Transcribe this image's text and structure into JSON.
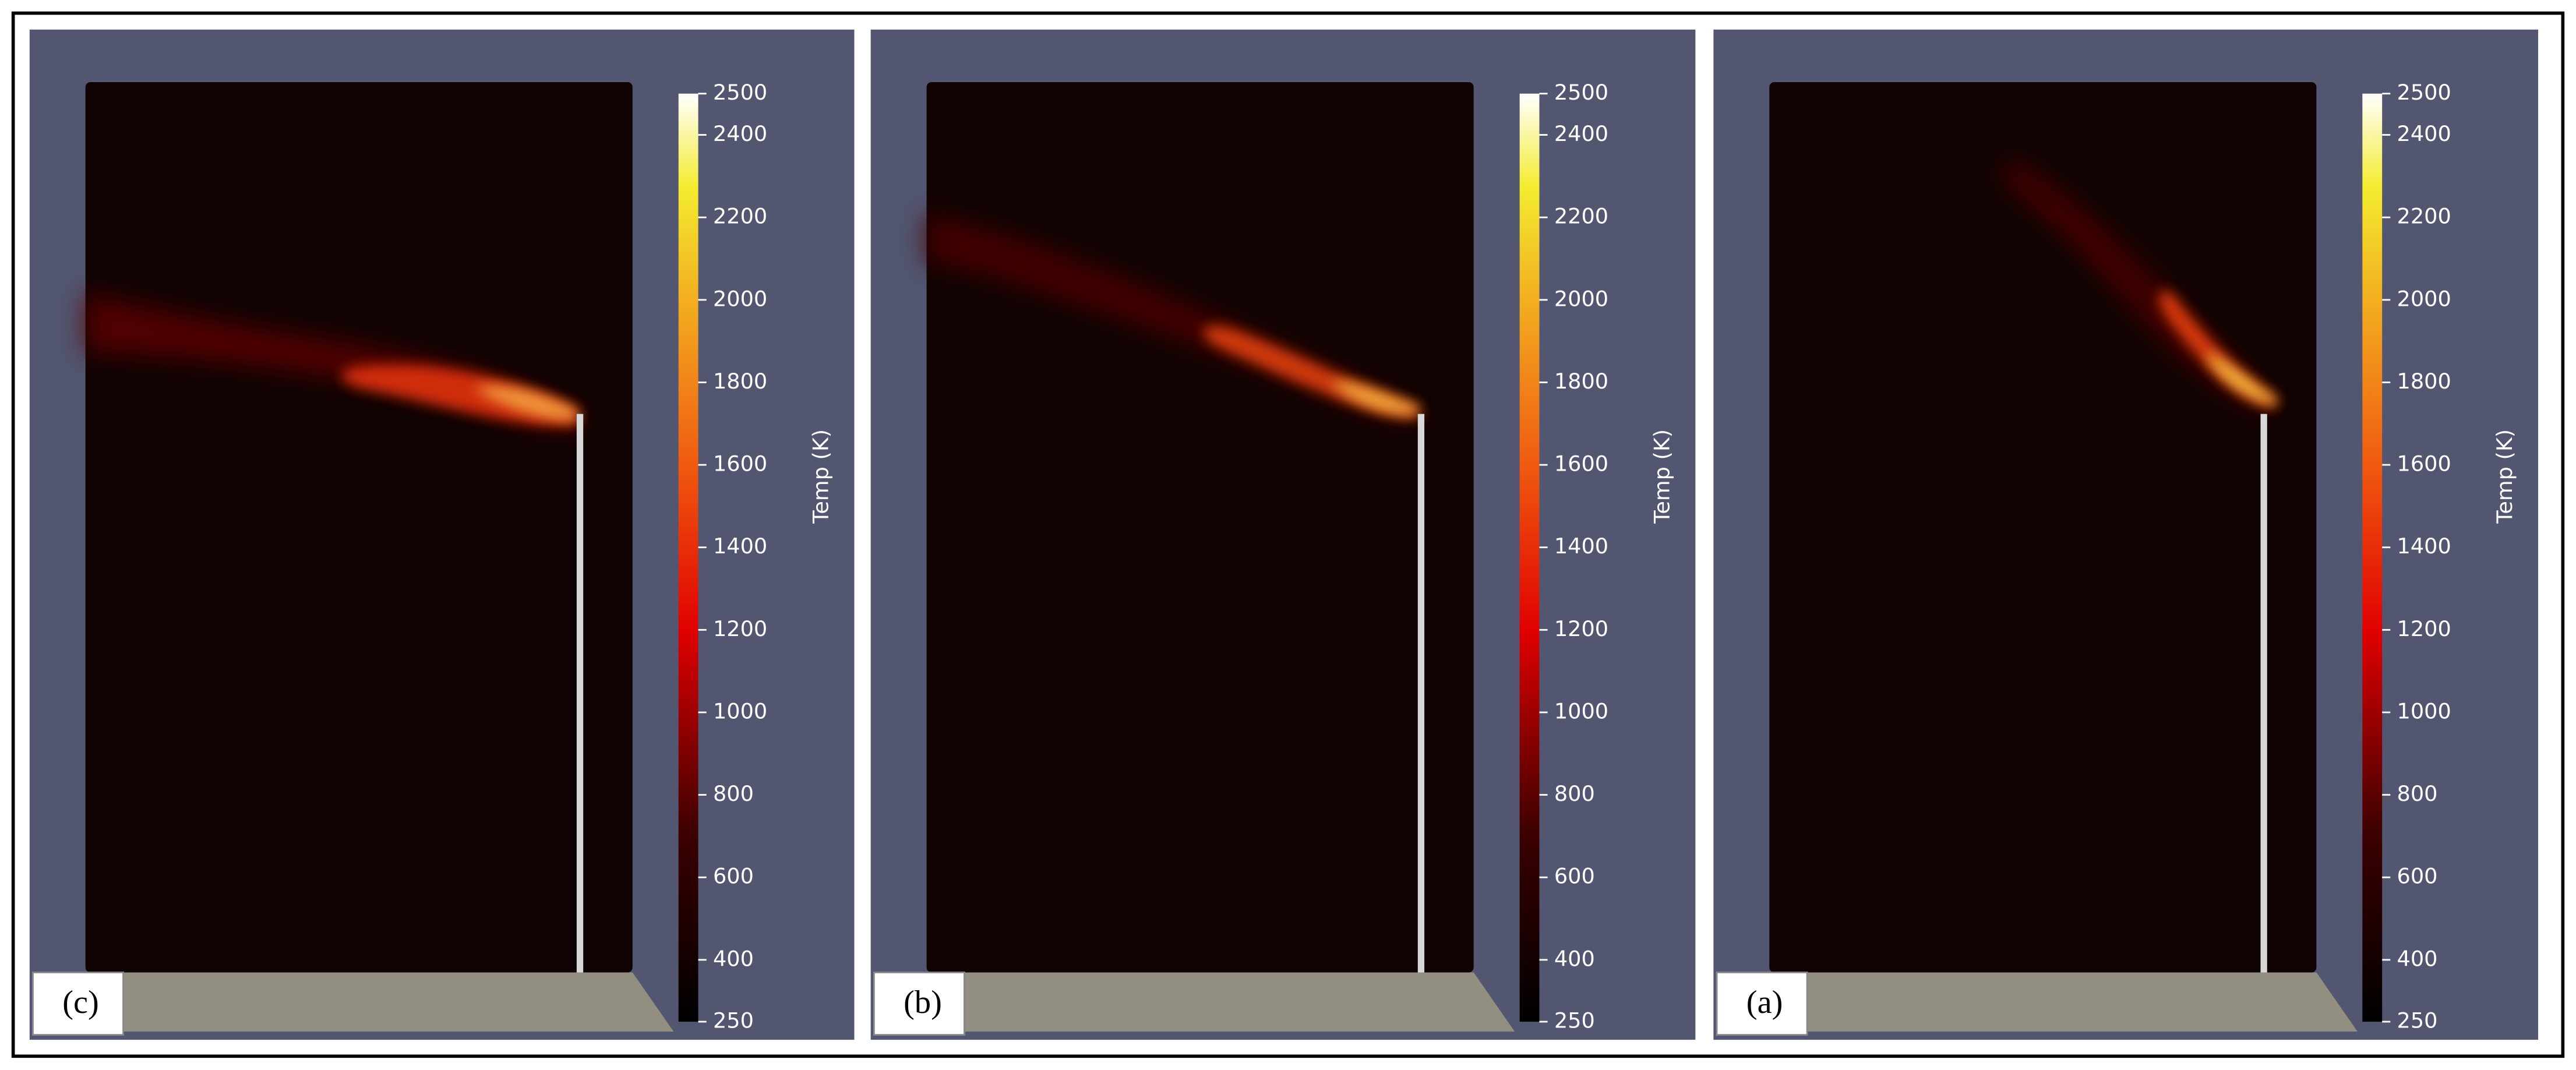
{
  "panels": [
    {
      "label": "(c)",
      "colorbar": {
        "title": "Temp (K)",
        "lim": [
          250,
          2500
        ],
        "ticks": [
          250,
          400,
          600,
          800,
          1000,
          1200,
          1400,
          1600,
          1800,
          2000,
          2200,
          2400,
          2500
        ]
      }
    },
    {
      "label": "(b)",
      "colorbar": {
        "title": "Temp (K)",
        "lim": [
          250,
          2500
        ],
        "ticks": [
          250,
          400,
          600,
          800,
          1000,
          1200,
          1400,
          1600,
          1800,
          2000,
          2200,
          2400,
          2500
        ]
      }
    },
    {
      "label": "(a)",
      "colorbar": {
        "title": "Temp (K)",
        "lim": [
          250,
          2500
        ],
        "ticks": [
          250,
          400,
          600,
          800,
          1000,
          1200,
          1400,
          1600,
          1800,
          2000,
          2200,
          2400,
          2500
        ]
      }
    }
  ]
}
